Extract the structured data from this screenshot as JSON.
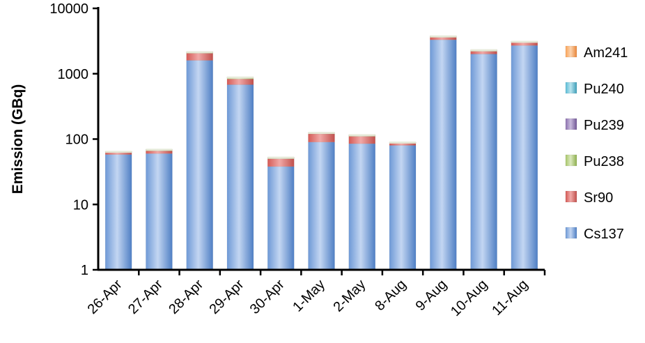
{
  "chart_data": {
    "type": "bar",
    "stacked": true,
    "log_scale": true,
    "ylabel": "Emission (GBq)",
    "xlabel": "",
    "title": "",
    "ylim": [
      1,
      10000
    ],
    "yticks": [
      "1",
      "10",
      "100",
      "1000",
      "10000"
    ],
    "grid": false,
    "legend_position": "right",
    "categories": [
      "26-Apr",
      "27-Apr",
      "28-Apr",
      "29-Apr",
      "30-Apr",
      "1-May",
      "2-May",
      "8-Aug",
      "9-Aug",
      "10-Aug",
      "11-Aug"
    ],
    "series": [
      {
        "name": "Cs137",
        "color": "#4f81bd",
        "values": [
          58,
          60,
          1600,
          680,
          38,
          90,
          85,
          80,
          3300,
          2000,
          2700
        ]
      },
      {
        "name": "Sr90",
        "color": "#c0504d",
        "values": [
          4,
          6,
          450,
          150,
          12,
          30,
          25,
          6,
          300,
          200,
          300
        ]
      },
      {
        "name": "Pu238",
        "color": "#9bbb59",
        "values": [
          2,
          3,
          100,
          50,
          2,
          5,
          5,
          3,
          150,
          100,
          100
        ]
      },
      {
        "name": "Pu239",
        "color": "#8064a2",
        "values": [
          0.3,
          0.3,
          5,
          3,
          0.3,
          0.5,
          0.5,
          0.3,
          10,
          8,
          8
        ]
      },
      {
        "name": "Pu240",
        "color": "#4bacc6",
        "values": [
          0.3,
          0.3,
          5,
          3,
          0.3,
          0.5,
          0.5,
          0.3,
          10,
          8,
          8
        ]
      },
      {
        "name": "Am241",
        "color": "#f79646",
        "values": [
          0.1,
          0.1,
          2,
          1,
          0.1,
          0.2,
          0.2,
          0.1,
          5,
          4,
          4
        ]
      }
    ]
  }
}
